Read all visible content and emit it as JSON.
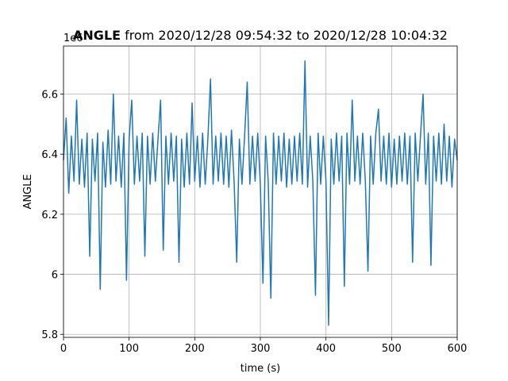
{
  "chart_data": {
    "type": "line",
    "title_bold": "ANGLE",
    "title": "from 2020/12/28 09:54:32 to 2020/12/28 10:04:32",
    "x_label": "time (s)",
    "y_label": "ANGLE",
    "y_offset_label": "1e6",
    "xlim": [
      0,
      600
    ],
    "xticks": [
      0,
      100,
      200,
      300,
      400,
      500,
      600
    ],
    "ylim": [
      5.79,
      6.76
    ],
    "yticks": [
      5.8,
      6.0,
      6.2,
      6.4,
      6.6
    ],
    "grid": true,
    "series": [
      {
        "color": "#1f77b4",
        "x": [
          0,
          4,
          8,
          12,
          16,
          20,
          24,
          28,
          32,
          36,
          40,
          44,
          48,
          52,
          56,
          60,
          64,
          68,
          72,
          76,
          80,
          84,
          88,
          92,
          96,
          100,
          104,
          108,
          112,
          116,
          120,
          124,
          128,
          132,
          136,
          140,
          144,
          148,
          152,
          156,
          160,
          164,
          168,
          172,
          176,
          180,
          184,
          188,
          192,
          196,
          200,
          204,
          208,
          212,
          216,
          220,
          224,
          228,
          232,
          236,
          240,
          244,
          248,
          252,
          256,
          260,
          264,
          268,
          272,
          276,
          280,
          284,
          288,
          292,
          296,
          300,
          304,
          308,
          312,
          316,
          320,
          324,
          328,
          332,
          336,
          340,
          344,
          348,
          352,
          356,
          360,
          364,
          368,
          372,
          376,
          380,
          384,
          388,
          392,
          396,
          400,
          404,
          408,
          412,
          416,
          420,
          424,
          428,
          432,
          436,
          440,
          444,
          448,
          452,
          456,
          460,
          464,
          468,
          472,
          476,
          480,
          484,
          488,
          492,
          496,
          500,
          504,
          508,
          512,
          516,
          520,
          524,
          528,
          532,
          536,
          540,
          544,
          548,
          552,
          556,
          560,
          564,
          568,
          572,
          576,
          580,
          584,
          588,
          592,
          596,
          600
        ],
        "values": [
          6.38,
          6.52,
          6.27,
          6.46,
          6.31,
          6.58,
          6.3,
          6.45,
          6.29,
          6.47,
          6.06,
          6.45,
          6.31,
          6.47,
          5.95,
          6.44,
          6.29,
          6.48,
          6.3,
          6.6,
          6.31,
          6.46,
          6.29,
          6.47,
          5.98,
          6.45,
          6.58,
          6.3,
          6.46,
          6.31,
          6.47,
          6.06,
          6.46,
          6.3,
          6.47,
          6.31,
          6.45,
          6.58,
          6.08,
          6.46,
          6.3,
          6.47,
          6.31,
          6.46,
          6.04,
          6.45,
          6.29,
          6.47,
          6.3,
          6.57,
          6.31,
          6.46,
          6.29,
          6.47,
          6.3,
          6.45,
          6.65,
          6.3,
          6.46,
          6.31,
          6.47,
          6.3,
          6.46,
          6.29,
          6.48,
          6.31,
          6.04,
          6.45,
          6.3,
          6.46,
          6.64,
          6.3,
          6.46,
          6.31,
          6.47,
          6.3,
          5.97,
          6.46,
          6.31,
          5.92,
          6.47,
          6.3,
          6.46,
          6.31,
          6.47,
          6.29,
          6.45,
          6.3,
          6.46,
          6.31,
          6.47,
          6.3,
          6.71,
          6.29,
          6.46,
          6.31,
          5.93,
          6.47,
          6.3,
          6.46,
          6.31,
          5.83,
          6.45,
          6.3,
          6.47,
          6.31,
          6.46,
          5.96,
          6.47,
          6.3,
          6.58,
          6.31,
          6.46,
          6.3,
          6.47,
          6.31,
          6.01,
          6.46,
          6.3,
          6.47,
          6.55,
          6.31,
          6.46,
          6.3,
          6.47,
          6.29,
          6.45,
          6.3,
          6.46,
          6.31,
          6.47,
          6.3,
          6.46,
          6.04,
          6.47,
          6.31,
          6.46,
          6.6,
          6.3,
          6.47,
          6.03,
          6.46,
          6.31,
          6.47,
          6.3,
          6.5,
          6.31,
          6.46,
          6.29,
          6.45,
          6.38
        ]
      }
    ]
  }
}
